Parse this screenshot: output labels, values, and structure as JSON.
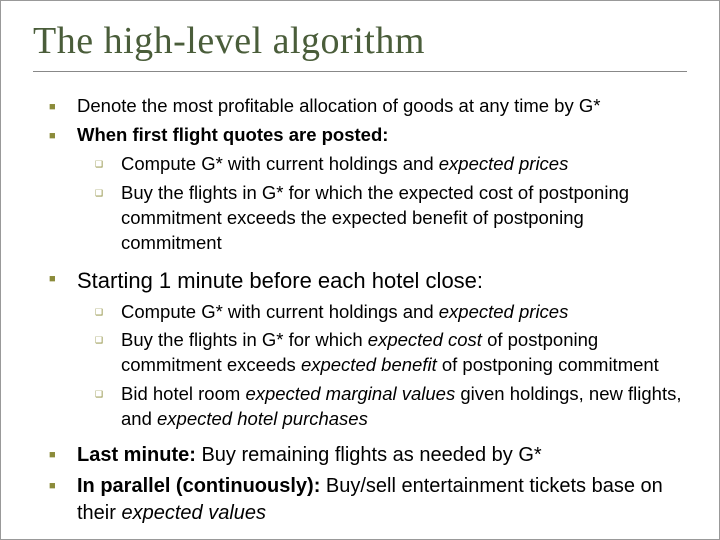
{
  "title": "The high-level algorithm",
  "colors": {
    "title": "#4a5d3a",
    "bullet": "#8b8b3a",
    "text": "#000000",
    "background": "#ffffff",
    "rule": "#888888"
  },
  "fonts": {
    "title_family": "Garamond, Times New Roman, serif",
    "title_size_pt": 28,
    "body_family": "Arial, Helvetica, sans-serif",
    "body_size_pt": 14
  },
  "bullets": {
    "lvl1_glyph": "■",
    "lvl2_glyph": "❑"
  },
  "items": [
    {
      "level": 1,
      "runs": [
        {
          "t": "Denote the most profitable allocation of goods at any time by G*"
        }
      ]
    },
    {
      "level": 1,
      "runs": [
        {
          "t": "When first flight quotes are posted:",
          "b": true
        }
      ]
    },
    {
      "level": 2,
      "runs": [
        {
          "t": "Compute G* with current holdings and "
        },
        {
          "t": "expected prices",
          "i": true
        }
      ]
    },
    {
      "level": 2,
      "runs": [
        {
          "t": "Buy the flights in G* for which the expected cost of postponing commitment exceeds the expected benefit of postponing commitment"
        }
      ]
    },
    {
      "level": 0
    },
    {
      "level": 1,
      "runs": [
        {
          "t": "Starting 1 minute before each hotel close:"
        }
      ],
      "size": 22
    },
    {
      "level": 2,
      "runs": [
        {
          "t": "Compute G* with current holdings and "
        },
        {
          "t": "expected prices",
          "i": true
        }
      ]
    },
    {
      "level": 2,
      "runs": [
        {
          "t": "Buy the flights in G* for which "
        },
        {
          "t": "expected cost",
          "i": true
        },
        {
          "t": " of postponing commitment exceeds "
        },
        {
          "t": "expected benefit",
          "i": true
        },
        {
          "t": " of postponing commitment"
        }
      ]
    },
    {
      "level": 2,
      "runs": [
        {
          "t": "Bid hotel room "
        },
        {
          "t": "expected marginal values",
          "i": true
        },
        {
          "t": " given holdings, new flights, and "
        },
        {
          "t": "expected hotel purchases",
          "i": true
        }
      ]
    },
    {
      "level": 0
    },
    {
      "level": 1,
      "runs": [
        {
          "t": "Last minute:",
          "b": true
        },
        {
          "t": " Buy remaining flights as needed by G*"
        }
      ],
      "size": 20
    },
    {
      "level": 1,
      "runs": [
        {
          "t": "In parallel (continuously):",
          "b": true
        },
        {
          "t": " Buy/sell entertainment tickets base on their "
        },
        {
          "t": "expected values",
          "i": true
        }
      ],
      "size": 20
    }
  ]
}
